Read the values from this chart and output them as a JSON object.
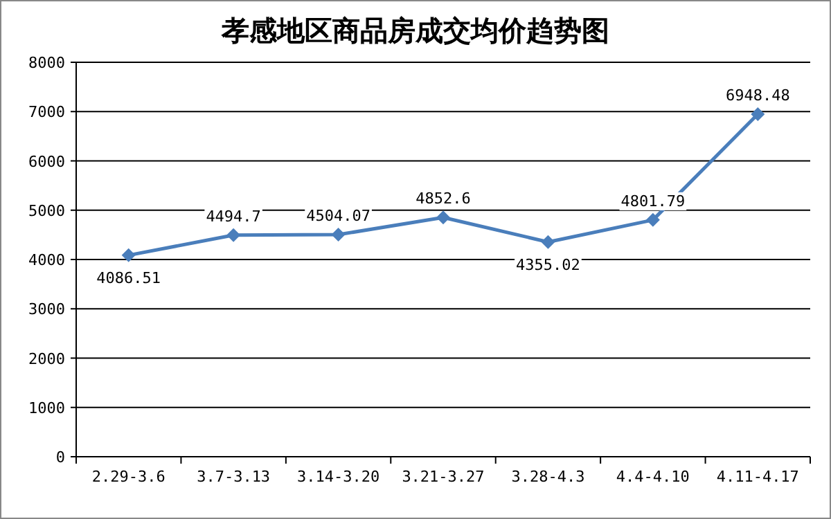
{
  "chart_data": {
    "type": "line",
    "title": "孝感地区商品房成交均价趋势图",
    "categories": [
      "2.29-3.6",
      "3.7-3.13",
      "3.14-3.20",
      "3.21-3.27",
      "3.28-4.3",
      "4.4-4.10",
      "4.11-4.17"
    ],
    "values": [
      4086.51,
      4494.7,
      4504.07,
      4852.6,
      4355.02,
      4801.79,
      6948.48
    ],
    "color": "#4a7ebb",
    "ylim": [
      0,
      8000
    ],
    "yticks": [
      0,
      1000,
      2000,
      3000,
      4000,
      5000,
      6000,
      7000,
      8000
    ],
    "grid": "y",
    "marker": "diamond",
    "line_style": "solid",
    "data_labels": true
  }
}
